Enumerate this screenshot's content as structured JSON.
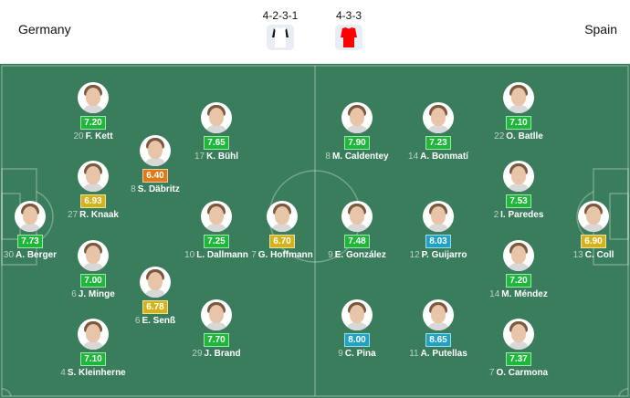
{
  "header": {
    "home_team": "Germany",
    "away_team": "Spain",
    "home_formation": "4-2-3-1",
    "away_formation": "4-3-3",
    "home_kit_color": "#ffffff",
    "away_kit_color": "#ff0000"
  },
  "rating_colors": {
    "green": "#1db83a",
    "yellow": "#d4b21a",
    "orange": "#e07a17",
    "blue": "#1fa3c4"
  },
  "home_players": [
    {
      "number": "20",
      "name": "F. Kett",
      "rating": "7.20",
      "color": "green"
    },
    {
      "number": "17",
      "name": "K. Bühl",
      "rating": "7.65",
      "color": "green"
    },
    {
      "number": "8",
      "name": "S. Däbritz",
      "rating": "6.40",
      "color": "orange"
    },
    {
      "number": "27",
      "name": "R. Knaak",
      "rating": "6.93",
      "color": "yellow"
    },
    {
      "number": "30",
      "name": "A. Berger",
      "rating": "7.73",
      "color": "green"
    },
    {
      "number": "10",
      "name": "L. Dallmann",
      "rating": "7.25",
      "color": "green"
    },
    {
      "number": "7",
      "name": "G. Hoffmann",
      "rating": "6.70",
      "color": "yellow"
    },
    {
      "number": "6",
      "name": "J. Minge",
      "rating": "7.00",
      "color": "green"
    },
    {
      "number": "6",
      "name": "E. Senß",
      "rating": "6.78",
      "color": "yellow"
    },
    {
      "number": "29",
      "name": "J. Brand",
      "rating": "7.70",
      "color": "green"
    },
    {
      "number": "4",
      "name": "S. Kleinherne",
      "rating": "7.10",
      "color": "green"
    }
  ],
  "away_players": [
    {
      "number": "8",
      "name": "M. Caldentey",
      "rating": "7.90",
      "color": "green"
    },
    {
      "number": "14",
      "name": "A. Bonmatí",
      "rating": "7.23",
      "color": "green"
    },
    {
      "number": "22",
      "name": "O. Batlle",
      "rating": "7.10",
      "color": "green"
    },
    {
      "number": "2",
      "name": "I. Paredes",
      "rating": "7.53",
      "color": "green"
    },
    {
      "number": "9",
      "name": "E. González",
      "rating": "7.48",
      "color": "green"
    },
    {
      "number": "12",
      "name": "P. Guijarro",
      "rating": "8.03",
      "color": "blue"
    },
    {
      "number": "13",
      "name": "C. Coll",
      "rating": "6.90",
      "color": "yellow"
    },
    {
      "number": "14",
      "name": "M. Méndez",
      "rating": "7.20",
      "color": "green"
    },
    {
      "number": "9",
      "name": "C. Pina",
      "rating": "8.00",
      "color": "blue"
    },
    {
      "number": "11",
      "name": "A. Putellas",
      "rating": "8.65",
      "color": "blue"
    },
    {
      "number": "7",
      "name": "O. Carmona",
      "rating": "7.37",
      "color": "green"
    }
  ]
}
